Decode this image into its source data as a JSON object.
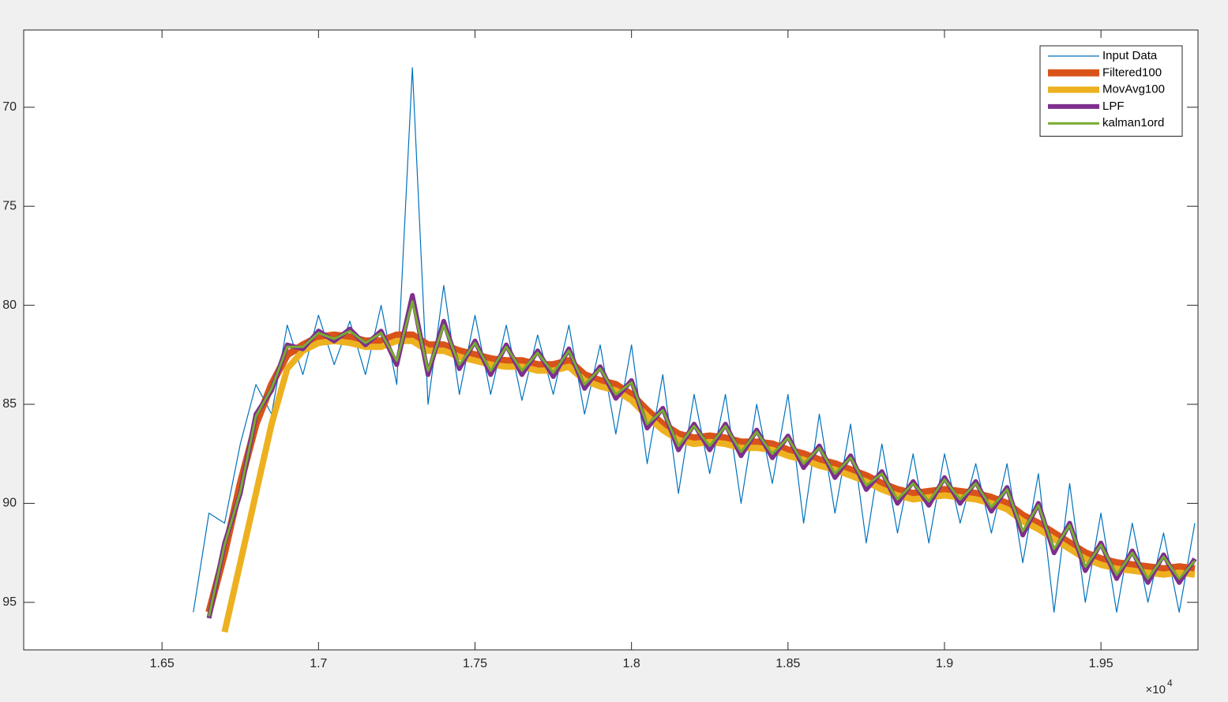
{
  "chart_data": {
    "type": "line",
    "xlim": [
      16058,
      19810
    ],
    "ylim": [
      66.1,
      97.4
    ],
    "y_reversed": true,
    "box": true,
    "xticks": [
      {
        "value": 16500,
        "label": "1.65"
      },
      {
        "value": 17000,
        "label": "1.7"
      },
      {
        "value": 17500,
        "label": "1.75"
      },
      {
        "value": 18000,
        "label": "1.8"
      },
      {
        "value": 18500,
        "label": "1.85"
      },
      {
        "value": 19000,
        "label": "1.9"
      },
      {
        "value": 19500,
        "label": "1.95"
      }
    ],
    "x_exponent_base": "×10",
    "x_exponent": "4",
    "yticks": [
      70,
      75,
      80,
      85,
      90,
      95
    ],
    "legend": "top-right",
    "x": [
      16600,
      16650,
      16700,
      16750,
      16800,
      16850,
      16900,
      16950,
      17000,
      17050,
      17100,
      17150,
      17200,
      17250,
      17300,
      17350,
      17400,
      17450,
      17500,
      17550,
      17600,
      17650,
      17700,
      17750,
      17800,
      17850,
      17900,
      17950,
      18000,
      18050,
      18100,
      18150,
      18200,
      18250,
      18300,
      18350,
      18400,
      18450,
      18500,
      18550,
      18600,
      18650,
      18700,
      18750,
      18800,
      18850,
      18900,
      18950,
      19000,
      19050,
      19100,
      19150,
      19200,
      19250,
      19300,
      19350,
      19400,
      19450,
      19500,
      19550,
      19600,
      19650,
      19700,
      19750,
      19800
    ],
    "series": [
      {
        "name": "Input Data",
        "color": "#0072bd",
        "width": 1.2,
        "values": [
          95.5,
          90.5,
          91,
          87,
          84,
          85.5,
          81,
          83.5,
          80.5,
          83,
          80.8,
          83.5,
          80,
          84,
          68,
          85,
          79,
          84.5,
          80.5,
          84.5,
          81,
          84.8,
          81.5,
          84.5,
          81,
          85.5,
          82,
          86.5,
          82,
          88,
          83.5,
          89.5,
          84.5,
          88.5,
          84.5,
          90,
          85,
          89,
          84.5,
          91,
          85.5,
          90.5,
          86,
          92,
          87,
          91.5,
          87.5,
          92,
          87.5,
          91,
          88,
          91.5,
          88,
          93,
          88.5,
          95.5,
          89,
          95,
          90.5,
          95.5,
          91,
          95,
          91.5,
          95.5,
          91
        ]
      },
      {
        "name": "Filtered100",
        "color": "#d95319",
        "width": 9,
        "values": [
          null,
          95.5,
          92.5,
          89,
          86,
          84,
          82.5,
          82,
          81.6,
          81.5,
          81.6,
          81.8,
          81.8,
          81.5,
          81.5,
          82,
          82,
          82.3,
          82.5,
          82.7,
          82.8,
          82.8,
          83,
          83,
          82.8,
          83.5,
          83.8,
          84,
          84.5,
          85.3,
          86,
          86.5,
          86.7,
          86.6,
          86.7,
          86.9,
          86.9,
          87,
          87.3,
          87.5,
          87.8,
          88,
          88.3,
          88.6,
          89,
          89.3,
          89.5,
          89.4,
          89.3,
          89.4,
          89.5,
          89.7,
          90,
          90.6,
          91,
          91.5,
          92,
          92.5,
          92.8,
          93,
          93.1,
          93.2,
          93.3,
          93.2,
          93.3
        ]
      },
      {
        "name": "MovAvg100",
        "color": "#edb120",
        "width": 8,
        "values": [
          null,
          null,
          96.5,
          93,
          89.5,
          86,
          83.2,
          82.3,
          81.9,
          81.8,
          81.9,
          82.1,
          82.1,
          81.8,
          81.8,
          82.3,
          82.3,
          82.6,
          82.8,
          83,
          83.1,
          83.1,
          83.3,
          83.3,
          83.1,
          83.8,
          84.1,
          84.3,
          84.8,
          85.6,
          86.3,
          86.8,
          87,
          86.9,
          87,
          87.2,
          87.2,
          87.3,
          87.6,
          87.8,
          88.1,
          88.3,
          88.6,
          88.9,
          89.3,
          89.6,
          89.8,
          89.7,
          89.6,
          89.7,
          89.8,
          90,
          90.3,
          90.9,
          91.3,
          91.8,
          92.3,
          92.8,
          93.1,
          93.3,
          93.4,
          93.5,
          93.6,
          93.5,
          93.6
        ]
      },
      {
        "name": "LPF",
        "color": "#7e2f8e",
        "width": 6,
        "values": [
          null,
          95.8,
          92,
          89.5,
          85.5,
          84.3,
          82,
          82.2,
          81.3,
          81.8,
          81.2,
          82,
          81.3,
          83,
          79.5,
          83.5,
          80.8,
          83.2,
          81.8,
          83.5,
          82,
          83.5,
          82.3,
          83.6,
          82.2,
          84.2,
          83.1,
          84.7,
          83.8,
          86.2,
          85.2,
          87.3,
          86,
          87.3,
          86,
          87.6,
          86.3,
          87.7,
          86.6,
          88.2,
          87.1,
          88.7,
          87.6,
          89.3,
          88.4,
          90,
          88.9,
          90.1,
          88.7,
          90,
          88.9,
          90.4,
          89.2,
          91.6,
          90,
          92.5,
          91,
          93.4,
          92,
          93.8,
          92.4,
          94,
          92.6,
          94,
          92.8
        ]
      },
      {
        "name": "kalman1ord",
        "color": "#77ac30",
        "width": 3,
        "values": [
          null,
          95.7,
          92.1,
          89.4,
          85.6,
          84.2,
          82.1,
          82.1,
          81.4,
          81.7,
          81.3,
          81.9,
          81.4,
          82.8,
          79.8,
          83.3,
          81,
          83,
          81.9,
          83.3,
          82.1,
          83.3,
          82.4,
          83.4,
          82.3,
          84,
          83.2,
          84.5,
          83.9,
          86,
          85.3,
          87.1,
          86.1,
          87.1,
          86.1,
          87.4,
          86.4,
          87.5,
          86.7,
          88,
          87.2,
          88.5,
          87.7,
          89.1,
          88.5,
          89.8,
          89,
          89.9,
          88.8,
          89.8,
          89,
          90.2,
          89.3,
          91.4,
          90.1,
          92.3,
          91.1,
          93.2,
          92.1,
          93.6,
          92.5,
          93.8,
          92.7,
          93.8,
          92.9
        ]
      }
    ]
  }
}
